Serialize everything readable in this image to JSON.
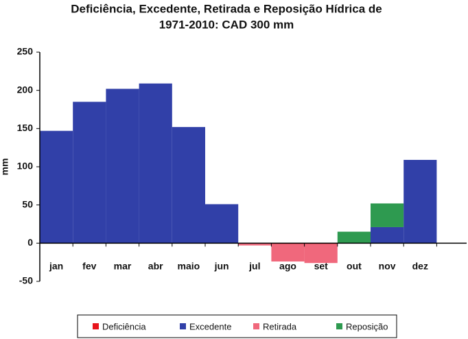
{
  "chart_data": {
    "type": "bar",
    "title": [
      "Deficiência, Excedente, Retirada e Reposição Hídrica de",
      "1971-2010: CAD 300 mm"
    ],
    "y_label": "mm",
    "categories": [
      "jan",
      "fev",
      "mar",
      "abr",
      "maio",
      "jun",
      "jul",
      "ago",
      "set",
      "out",
      "nov",
      "dez"
    ],
    "series": [
      {
        "name": "Deficiência",
        "color": "#e8141c",
        "values": [
          0,
          0,
          0,
          0,
          0,
          0,
          0,
          -1,
          -1,
          0,
          0,
          0
        ]
      },
      {
        "name": "Excedente",
        "color": "#3140a8",
        "values": [
          147,
          185,
          202,
          209,
          152,
          51,
          0,
          0,
          0,
          0,
          21,
          109
        ]
      },
      {
        "name": "Retirada",
        "color": "#f0687c",
        "values": [
          0,
          0,
          0,
          0,
          0,
          0,
          -3,
          -23,
          -25,
          0,
          0,
          0
        ]
      },
      {
        "name": "Reposição",
        "color": "#2e9a50",
        "values": [
          0,
          0,
          0,
          0,
          0,
          0,
          0,
          0,
          0,
          15,
          31,
          0
        ]
      }
    ],
    "ylim": [
      -50,
      250
    ],
    "yticks": [
      -50,
      0,
      50,
      100,
      150,
      200,
      250
    ],
    "grid": false,
    "legend": "bottom"
  }
}
